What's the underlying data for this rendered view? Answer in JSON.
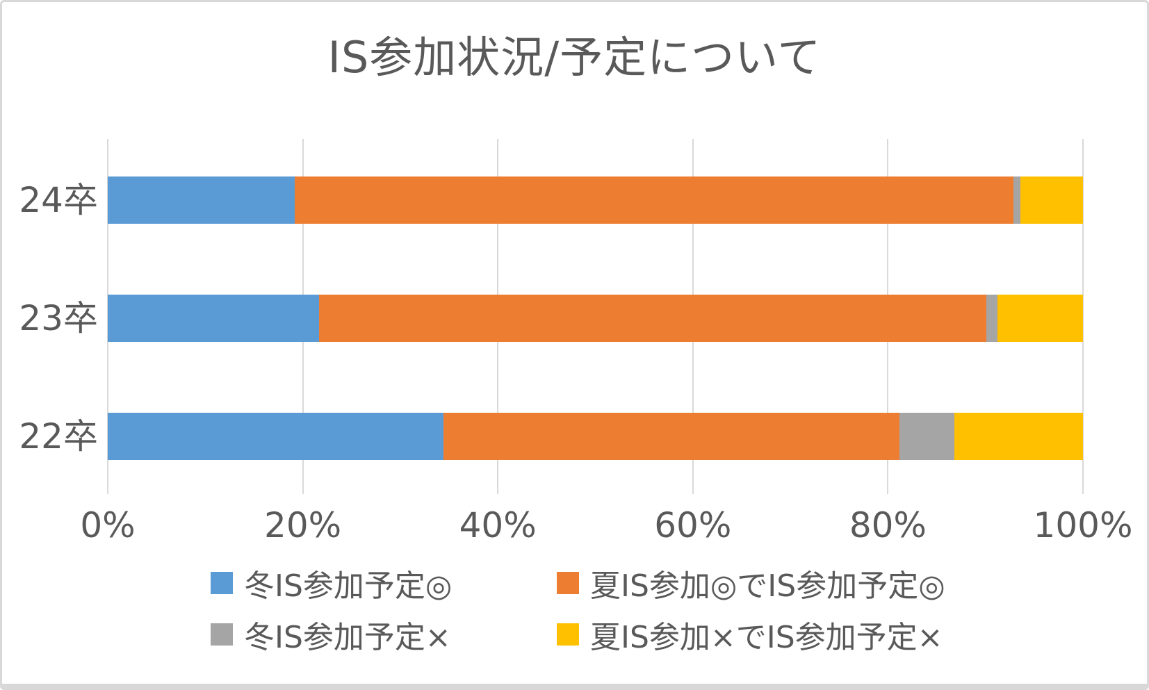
{
  "chart_data": {
    "type": "bar",
    "orientation": "horizontal",
    "stacked": true,
    "percent_stacked": true,
    "title": "IS参加状況/予定について",
    "categories": [
      "24卒",
      "23卒",
      "22卒"
    ],
    "series": [
      {
        "name": "冬IS参加予定◎",
        "color": "#5B9BD5",
        "values": [
          19.2,
          21.7,
          34.4
        ]
      },
      {
        "name": "夏IS参加◎でIS参加予定◎",
        "color": "#ED7D31",
        "values": [
          73.7,
          68.4,
          46.8
        ]
      },
      {
        "name": "冬IS参加予定×",
        "color": "#A5A5A5",
        "values": [
          0.7,
          1.1,
          5.6
        ]
      },
      {
        "name": "夏IS参加×でIS参加予定×",
        "color": "#FFC000",
        "values": [
          6.4,
          8.8,
          13.2
        ]
      }
    ],
    "x_ticks": [
      "0%",
      "20%",
      "40%",
      "60%",
      "80%",
      "100%"
    ],
    "xlim": [
      0,
      100
    ],
    "grid": true,
    "legend_position": "bottom",
    "gridline_color": "#D9D9D9",
    "text_color": "#595959",
    "background_color": "#FFFFFF"
  }
}
